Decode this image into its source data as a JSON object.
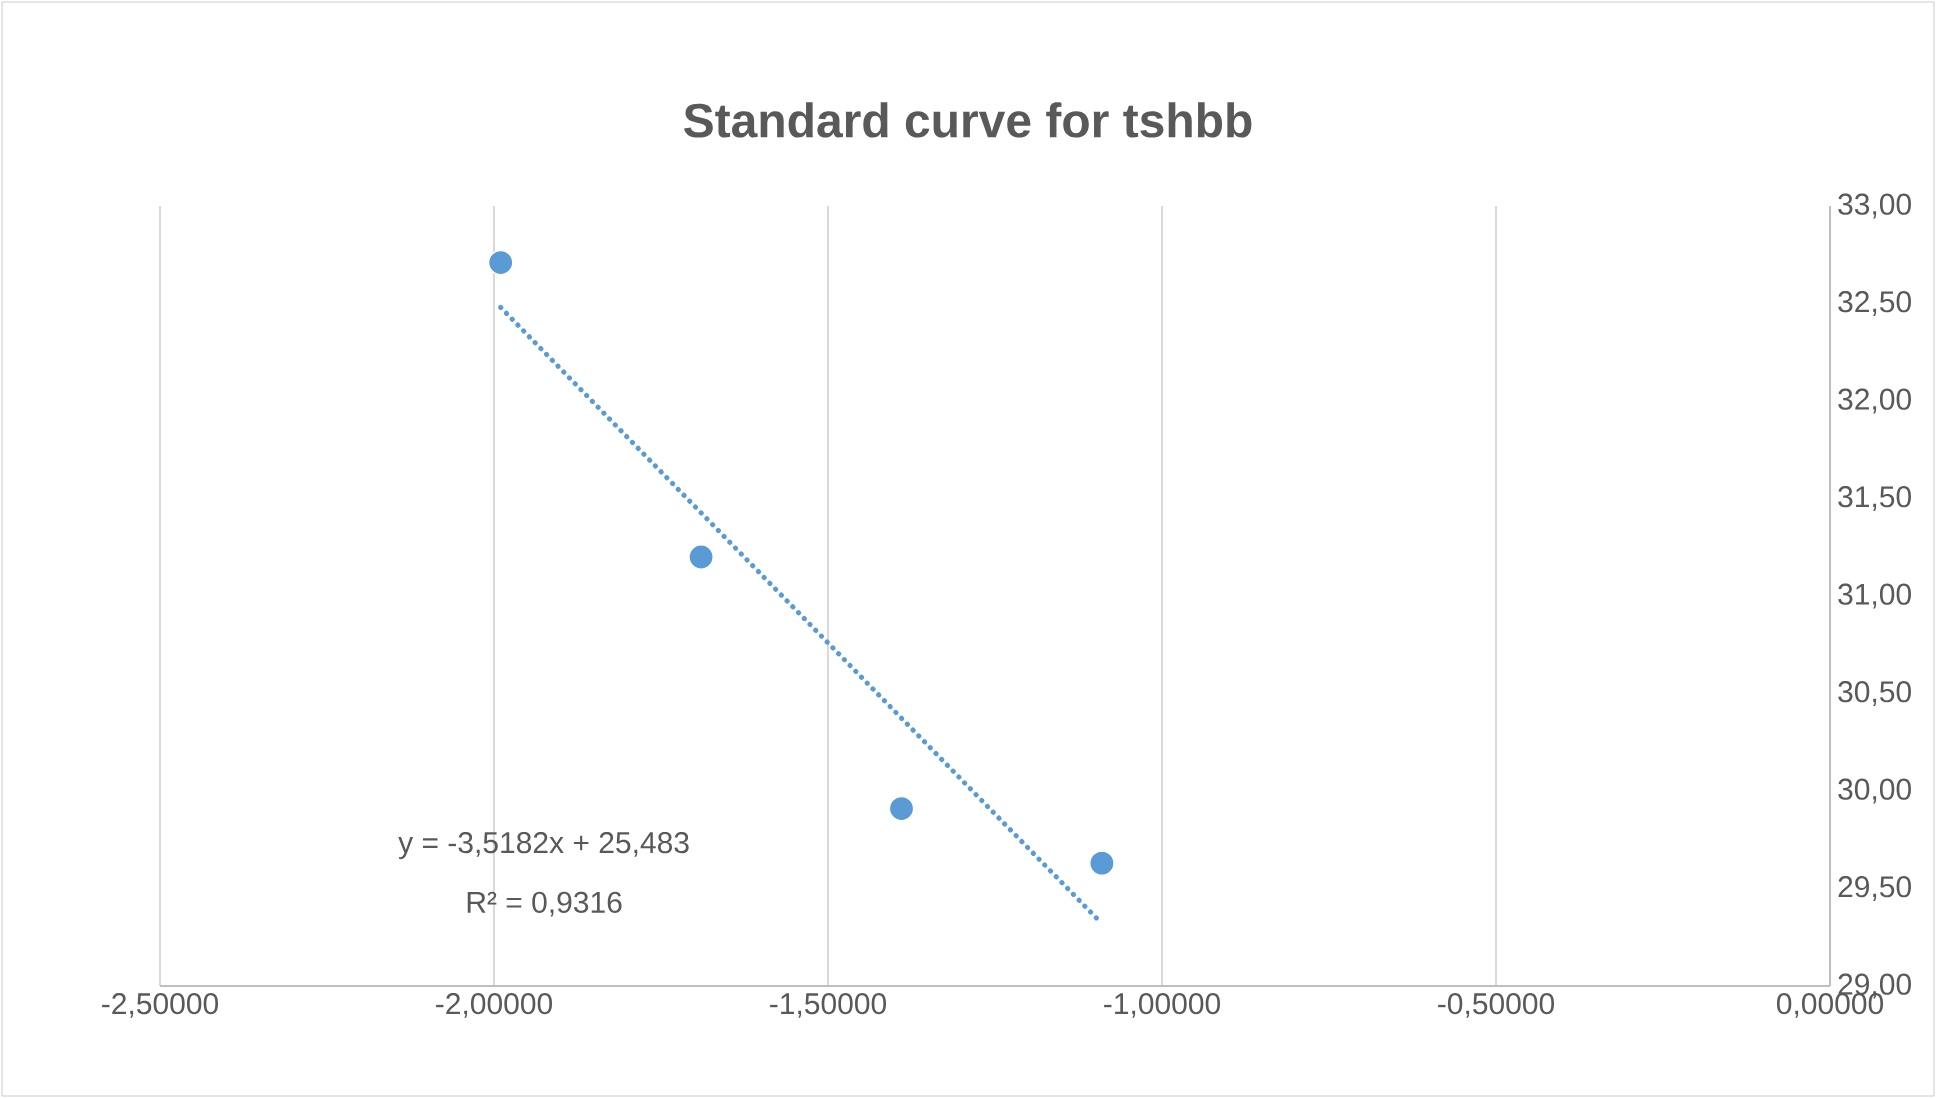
{
  "chart_data": {
    "type": "scatter",
    "title": "Standard curve for tshbb",
    "series": [
      {
        "type": "scatter",
        "color": "#5b9bd5",
        "marker": "circle",
        "x": [
          -1.99,
          -1.69,
          -1.39,
          -1.09
        ],
        "values": [
          32.71,
          31.2,
          29.91,
          29.63
        ]
      },
      {
        "type": "line",
        "color": "#5b9bd5",
        "marker": "none",
        "line_style": "dotted",
        "x": [
          -1.99,
          -1.09
        ],
        "values": [
          32.48,
          29.32
        ]
      }
    ],
    "xlim": [
      -2.5,
      0
    ],
    "ylim": [
      29,
      33
    ],
    "xticks": [
      {
        "value": -2.5,
        "label": "-2,50000"
      },
      {
        "value": -2.0,
        "label": "-2,00000"
      },
      {
        "value": -1.5,
        "label": "-1,50000"
      },
      {
        "value": -1.0,
        "label": "-1,00000"
      },
      {
        "value": -0.5,
        "label": "-0,50000"
      },
      {
        "value": 0,
        "label": "0,00000"
      }
    ],
    "yticks": [
      {
        "value": 29,
        "label": "29,00"
      },
      {
        "value": 29.5,
        "label": "29,50"
      },
      {
        "value": 30,
        "label": "30,00"
      },
      {
        "value": 30.5,
        "label": "30,50"
      },
      {
        "value": 31,
        "label": "31,00"
      },
      {
        "value": 31.5,
        "label": "31,50"
      },
      {
        "value": 32,
        "label": "32,00"
      },
      {
        "value": 32.5,
        "label": "32,50"
      },
      {
        "value": 33,
        "label": "33,00"
      }
    ],
    "grid": "x",
    "annotations": [
      "y = -3,5182x + 25,483",
      "R² = 0,9316"
    ]
  }
}
